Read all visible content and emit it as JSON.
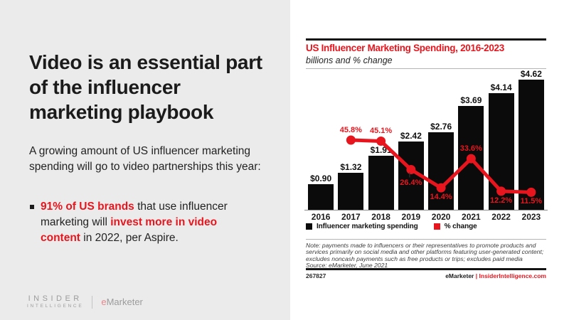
{
  "colors": {
    "accent_red": "#e7161e",
    "left_background": "#ebebeb",
    "bar_black": "#0b0b0b",
    "brand_gray": "#9c9c9c"
  },
  "left_panel": {
    "title": "Video is an essential part of the influencer marketing playbook",
    "paragraph": "A growing amount of US influencer marketing spending will go to video partnerships this year:",
    "bullet": {
      "segments": [
        {
          "text": "91% of US brands",
          "red_bold": true
        },
        {
          "text": " that use influencer marketing will ",
          "red_bold": false
        },
        {
          "text": "invest more in video content",
          "red_bold": true
        },
        {
          "text": " in 2022, per Aspire.",
          "red_bold": false
        }
      ]
    },
    "brand": {
      "insider": "INSIDER",
      "intelligence": "INTELLIGENCE",
      "emarketer_e": "e",
      "emarketer_rest": "Marketer"
    }
  },
  "chart": {
    "title": "US Influencer Marketing Spending, 2016-2023",
    "subtitle": "billions and % change",
    "legend": [
      {
        "label": "Influencer marketing spending",
        "color": "#0b0b0b"
      },
      {
        "label": "% change",
        "color": "#e7161e"
      }
    ],
    "note_lines": [
      "Note: payments made to influencers or their representatives to promote products and",
      "services primarily on social media and other platforms featuring user-generated content;",
      "excludes noncash payments such as free products or trips; excludes paid media",
      "Source: eMarketer, June 2021"
    ],
    "chart_id": "267827",
    "credit": {
      "emarketer": "eMarketer",
      "separator": "|",
      "site": "InsiderIntelligence.com"
    }
  },
  "chart_data": {
    "type": "bar+line combo",
    "title": "US Influencer Marketing Spending, 2016-2023",
    "subtitle": "billions and % change",
    "categories": [
      "2016",
      "2017",
      "2018",
      "2019",
      "2020",
      "2021",
      "2022",
      "2023"
    ],
    "series": [
      {
        "name": "Influencer marketing spending",
        "type": "bar",
        "unit": "USD billions",
        "color": "#0b0b0b",
        "values": [
          0.9,
          1.32,
          1.91,
          2.42,
          2.76,
          3.69,
          4.14,
          4.62
        ],
        "labels": [
          "$0.90",
          "$1.32",
          "$1.91",
          "$2.42",
          "$2.76",
          "$3.69",
          "$4.14",
          "$4.62"
        ]
      },
      {
        "name": "% change",
        "type": "line",
        "unit": "percent",
        "color": "#e7161e",
        "values": [
          null,
          45.8,
          45.1,
          26.4,
          14.4,
          33.6,
          12.2,
          11.5
        ],
        "labels": [
          null,
          "45.8%",
          "45.1%",
          "26.4%",
          "14.4%",
          "33.6%",
          "12.2%",
          "11.5%"
        ],
        "label_positions": [
          null,
          "above",
          "above",
          "below-leader",
          "below",
          "above",
          "below",
          "below"
        ]
      }
    ],
    "ylim_bar": [
      0,
      5
    ],
    "ylim_pct": [
      0,
      50
    ],
    "grid": false,
    "legend_position": "bottom"
  }
}
